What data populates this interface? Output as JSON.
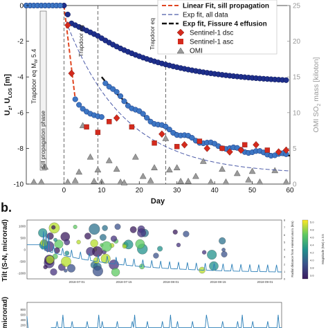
{
  "panel_a": {
    "annotations": {
      "trapdoor_main": "Trapdoor eq M",
      "trapdoor_sub": "W",
      "trapdoor_mag": " 5.4",
      "sill_phase": "Sill propagation phase",
      "trapdoor_eq_2": "Trapdoor eq",
      "trapdoor_eq_3": "Trapdoor eq"
    },
    "legend": [
      {
        "label": "Linear Fit, sill propagation",
        "style": "dashed",
        "color": "#e0441f"
      },
      {
        "label": "Exp fit, all data",
        "style": "dashed",
        "color": "#4b5aa8"
      },
      {
        "label": "Exp fit, Fissure 4 effusion",
        "style": "dashed-thick",
        "color": "#111111"
      },
      {
        "label": "Sentinel-1 dsc",
        "style": "diamond",
        "color": "#d42a1d"
      },
      {
        "label": "Sentinel-1 asc",
        "style": "square",
        "color": "#d42a1d"
      },
      {
        "label": "OMI",
        "style": "triangle",
        "color": "#9a9a9a"
      }
    ],
    "chart_data": {
      "type": "scatter",
      "xlabel": "Day",
      "ylabel": "U",
      "ylabel_sub1": "z",
      "ylabel_mid": ", U",
      "ylabel_sub2": "LOS",
      "ylabel_unit": " [m]",
      "y2label": "OMI SO",
      "y2label_sub": "2",
      "y2label_unit": " mass [kiloton]",
      "xlim": [
        -10,
        60
      ],
      "ylim": [
        -10,
        0
      ],
      "y2lim": [
        0,
        25
      ],
      "xticks": [
        "0",
        "10",
        "20",
        "30",
        "40",
        "50",
        "60"
      ],
      "yticks": [
        "0",
        "-2",
        "-4",
        "-6",
        "-8",
        "-10"
      ],
      "y2ticks": [
        "0",
        "5",
        "10",
        "15",
        "20",
        "25"
      ],
      "trapdoor_days": [
        0,
        9,
        27
      ],
      "series": [
        {
          "name": "Sentinel-1 dsc",
          "marker": "diamond",
          "x": [
            1,
            2,
            14,
            26,
            32,
            38,
            44,
            47,
            51,
            57,
            59
          ],
          "y": [
            -1.1,
            -3.8,
            -6.3,
            -7.2,
            -7.8,
            -8.0,
            -8.2,
            -8.1,
            -7.8,
            -8.2,
            -8.1
          ]
        },
        {
          "name": "Sentinel-1 asc",
          "marker": "square",
          "x": [
            6,
            9,
            12,
            18,
            24,
            30,
            36,
            42,
            48,
            54
          ],
          "y": [
            -6.8,
            -7.1,
            -6.5,
            -6.8,
            -7.7,
            -7.9,
            -7.6,
            -8.0,
            -7.8,
            -8.1
          ]
        },
        {
          "name": "OMI",
          "marker": "triangle",
          "x": [
            -8,
            -6,
            -5,
            1,
            3,
            4,
            5,
            7,
            8,
            9,
            10,
            12,
            14,
            15,
            16,
            19,
            21,
            23,
            24,
            27,
            28,
            30,
            31,
            33,
            35,
            37,
            39,
            42,
            43,
            46,
            49,
            50,
            52,
            56,
            59
          ],
          "y": [
            0.3,
            0.3,
            2.4,
            0.3,
            0.5,
            1.7,
            8.2,
            3.8,
            0.4,
            2.0,
            0.3,
            3.3,
            2.1,
            0.3,
            0.2,
            3.8,
            1.1,
            0.5,
            2.3,
            6.4,
            2.0,
            2.3,
            0.4,
            0.4,
            1.1,
            3.2,
            0.3,
            2.1,
            0.3,
            1.5,
            0.6,
            1.8,
            0.3,
            1.9,
            0.3
          ]
        }
      ]
    }
  },
  "panel_b": {
    "label": "b.",
    "tilt_chart": {
      "type": "line",
      "ylabel": "Tilt (S-N, microrad)",
      "yticks": [
        "1000",
        "500",
        "0",
        "-500",
        "-1000"
      ],
      "xticks": [
        "2018-07-01",
        "2018-07-15",
        "2018-08-01",
        "2018-08-15",
        "2018-09-01"
      ],
      "right_label": "Radial distance from Halemaʻumaʻu (km)",
      "right_ticks": [
        "0",
        "1",
        "2",
        "3",
        "4",
        "5",
        "6",
        "7",
        "8"
      ],
      "colorbar_label": "Magnitude (Mw) ≥ 3.5",
      "colorbar_ticks": [
        "5.0",
        "4.8",
        "4.6",
        "4.4",
        "4.2",
        "4.0",
        "3.8",
        "3.6"
      ]
    },
    "second_chart": {
      "ylabel": "microrad)",
      "yticks": [
        "800",
        "600",
        "400",
        "200",
        "0"
      ]
    }
  }
}
